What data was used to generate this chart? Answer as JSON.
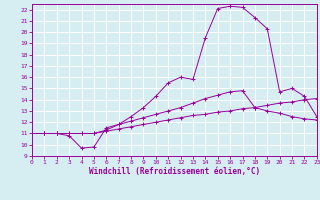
{
  "xlabel": "Windchill (Refroidissement éolien,°C)",
  "background_color": "#d6eef2",
  "grid_color": "#ffffff",
  "line_color": "#990099",
  "xlim": [
    0,
    23
  ],
  "ylim": [
    9,
    22.5
  ],
  "xticks": [
    0,
    1,
    2,
    3,
    4,
    5,
    6,
    7,
    8,
    9,
    10,
    11,
    12,
    13,
    14,
    15,
    16,
    17,
    18,
    19,
    20,
    21,
    22,
    23
  ],
  "yticks": [
    9,
    10,
    11,
    12,
    13,
    14,
    15,
    16,
    17,
    18,
    19,
    20,
    21,
    22
  ],
  "line1_x": [
    0,
    1,
    2,
    3,
    4,
    5,
    6,
    7,
    8,
    9,
    10,
    11,
    12,
    13,
    14,
    15,
    16,
    17,
    18,
    19,
    20,
    21,
    22,
    23
  ],
  "line1_y": [
    11,
    11,
    11,
    10.8,
    9.7,
    9.8,
    11.5,
    11.8,
    12.5,
    13.3,
    14.3,
    15.5,
    16.0,
    15.8,
    19.5,
    22.1,
    22.3,
    22.2,
    21.3,
    20.3,
    14.7,
    15.0,
    14.3,
    12.5
  ],
  "line2_x": [
    0,
    1,
    2,
    3,
    4,
    5,
    6,
    7,
    8,
    9,
    10,
    11,
    12,
    13,
    14,
    15,
    16,
    17,
    18,
    19,
    20,
    21,
    22,
    23
  ],
  "line2_y": [
    11,
    11,
    11,
    11,
    11,
    11,
    11.3,
    11.8,
    12.1,
    12.4,
    12.7,
    13.0,
    13.3,
    13.7,
    14.1,
    14.4,
    14.7,
    14.8,
    13.3,
    13.0,
    12.8,
    12.5,
    12.3,
    12.2
  ],
  "line3_x": [
    0,
    1,
    2,
    3,
    4,
    5,
    6,
    7,
    8,
    9,
    10,
    11,
    12,
    13,
    14,
    15,
    16,
    17,
    18,
    19,
    20,
    21,
    22,
    23
  ],
  "line3_y": [
    11,
    11,
    11,
    11,
    11,
    11,
    11.2,
    11.4,
    11.6,
    11.8,
    12.0,
    12.2,
    12.4,
    12.6,
    12.7,
    12.9,
    13.0,
    13.2,
    13.3,
    13.5,
    13.7,
    13.8,
    14.0,
    14.1
  ]
}
